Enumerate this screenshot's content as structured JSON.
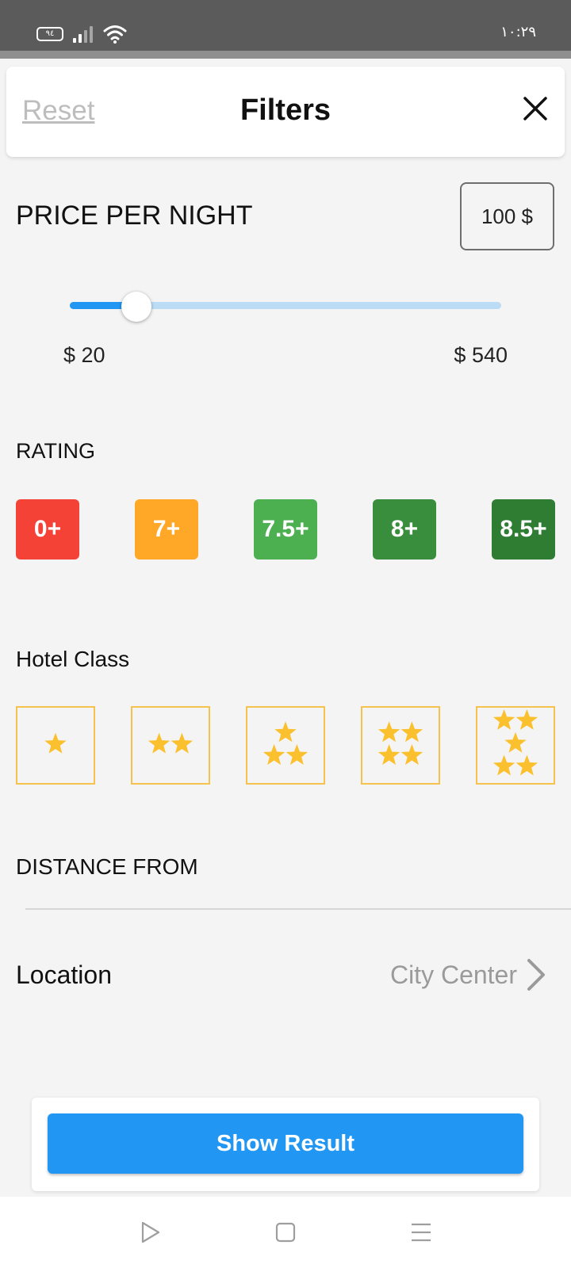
{
  "status_bar": {
    "battery": "٩٤",
    "time": "١٠:٢٩"
  },
  "header": {
    "reset_label": "Reset",
    "title": "Filters"
  },
  "price": {
    "title": "PRICE PER NIGHT",
    "selected_value": "100 $",
    "min_label": "$ 20",
    "max_label": "$ 540",
    "min": 20,
    "max": 540,
    "value": 100,
    "fill_color": "#2196f3",
    "track_color": "#bcdcf6"
  },
  "rating": {
    "title": "RATING",
    "options": [
      {
        "label": "0+",
        "color": "#f44336"
      },
      {
        "label": "7+",
        "color": "#ffa726"
      },
      {
        "label": "7.5+",
        "color": "#4caf50"
      },
      {
        "label": "8+",
        "color": "#388e3c"
      },
      {
        "label": "8.5+",
        "color": "#2e7d32"
      }
    ]
  },
  "hotel_class": {
    "title": "Hotel Class",
    "options": [
      1,
      2,
      3,
      4,
      5
    ],
    "star_color": "#fbc02d",
    "border_color": "#f5c24d"
  },
  "distance": {
    "title": "DISTANCE FROM"
  },
  "location": {
    "label": "Location",
    "value": "City Center"
  },
  "action": {
    "show_result_label": "Show Result"
  },
  "icons": {
    "close": "close-icon",
    "chevron": "chevron-right-icon",
    "star": "star-icon",
    "nav_back": "triangle-back-icon",
    "nav_home": "square-home-icon",
    "nav_menu": "menu-lines-icon"
  }
}
